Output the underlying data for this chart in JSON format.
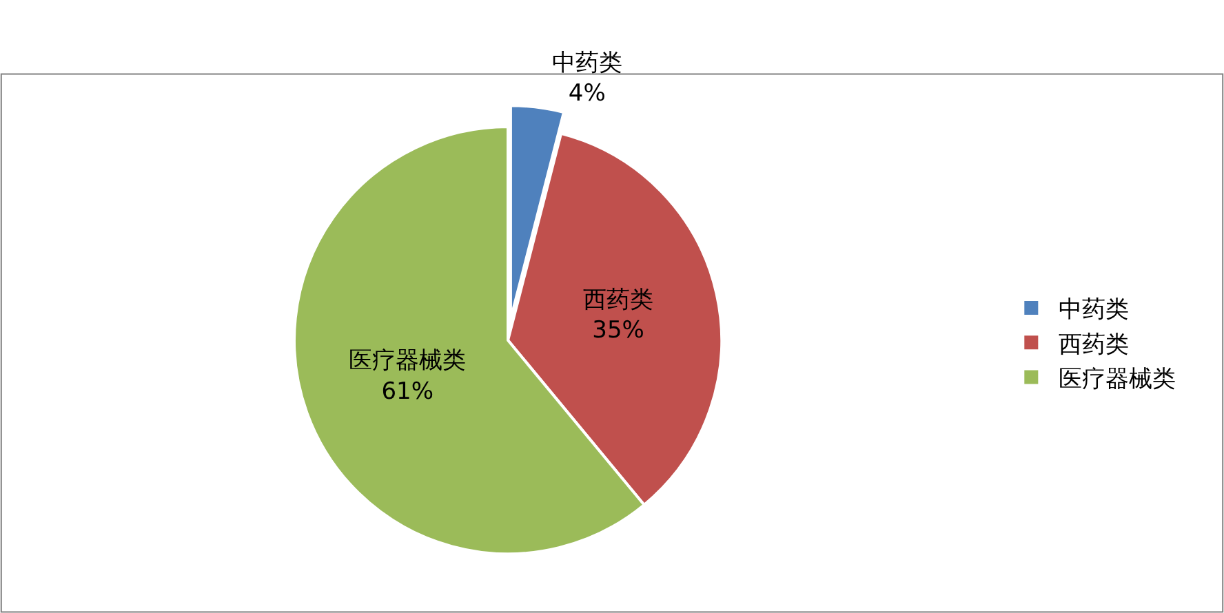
{
  "chart_data": {
    "type": "pie",
    "categories": [
      "中药类",
      "西药类",
      "医疗器械类"
    ],
    "values": [
      4,
      35,
      61
    ],
    "colors": [
      "#4f81bd",
      "#c0504d",
      "#9bbb59"
    ],
    "value_labels": [
      "4%",
      "35%",
      "61%"
    ],
    "legend": "right"
  }
}
